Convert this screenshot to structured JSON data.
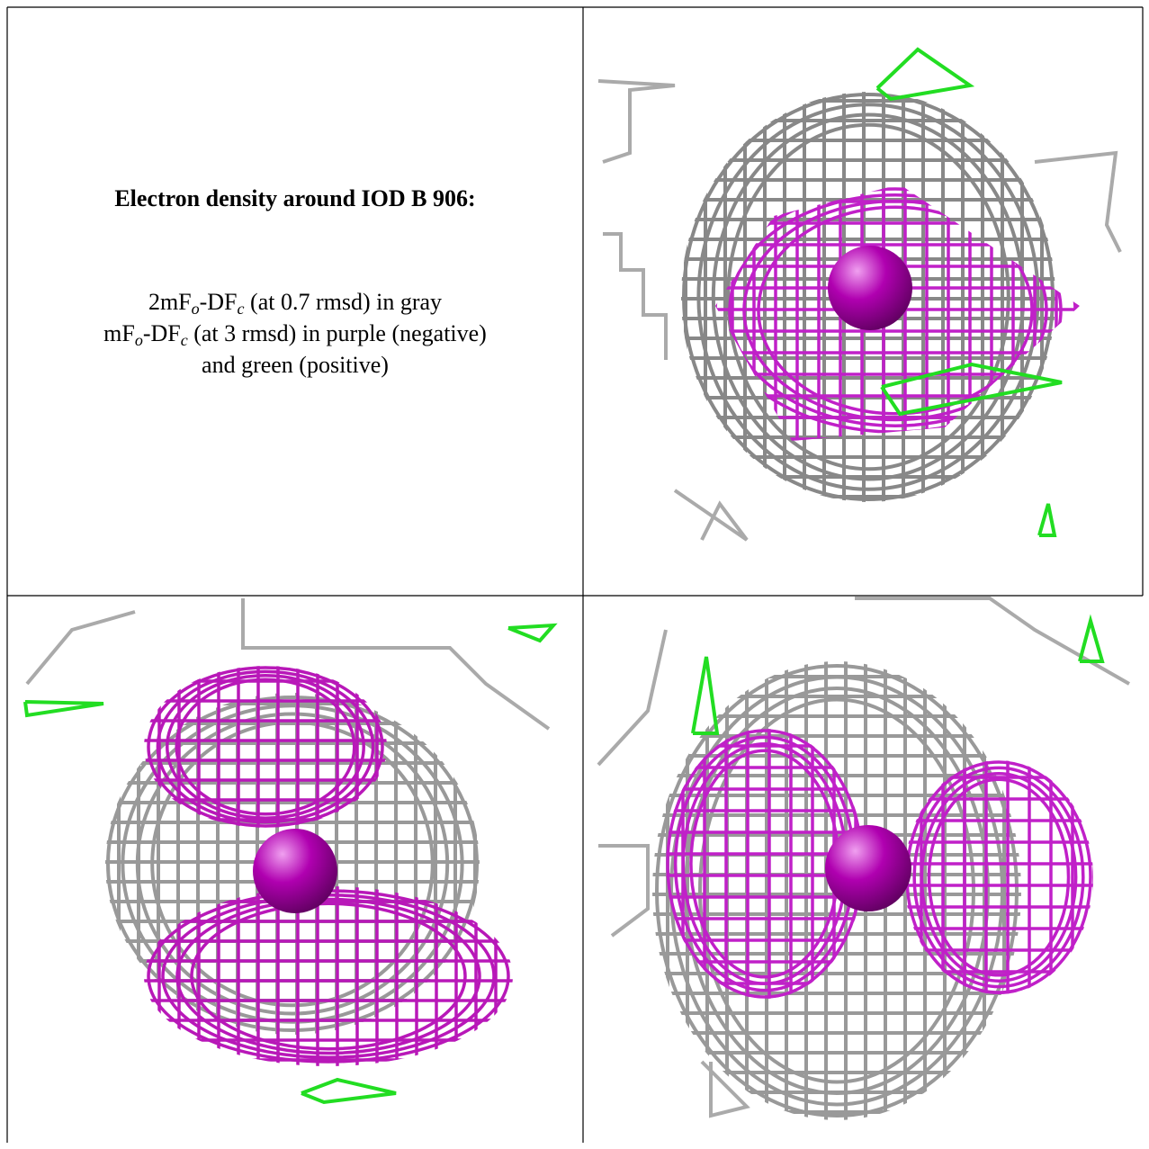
{
  "panel_text": {
    "title": "Electron density around IOD B 906:",
    "line1": [
      "2mF",
      "o",
      "-DF",
      "c",
      " (at 0.7 rmsd) in gray"
    ],
    "line2": [
      "mF",
      "o",
      "-DF",
      "c",
      " (at 3 rmsd) in purple (negative)"
    ],
    "line3": "and green (positive)"
  }
}
